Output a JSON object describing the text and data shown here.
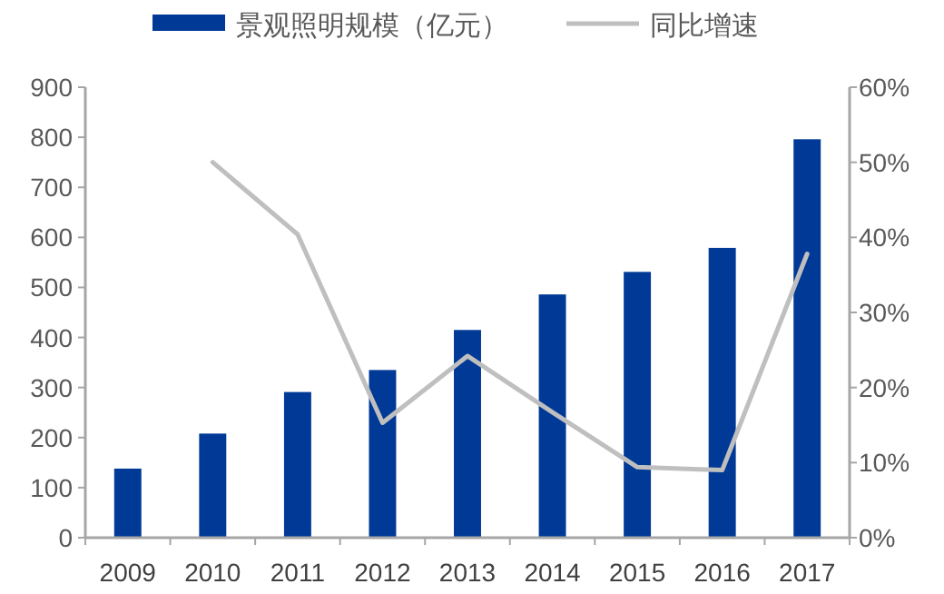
{
  "chart_data": {
    "type": "bar",
    "categories": [
      "2009",
      "2010",
      "2011",
      "2012",
      "2013",
      "2014",
      "2015",
      "2016",
      "2017"
    ],
    "series": [
      {
        "name": "景观照明规模（亿元）",
        "color": "#003a96",
        "values": [
          138,
          208,
          291,
          335,
          415,
          486,
          531,
          579,
          796
        ]
      },
      {
        "name": "同比增速",
        "type": "line",
        "axis": "y2",
        "color": "#bfbfbf",
        "values": [
          null,
          50,
          40.4,
          15.3,
          24.2,
          16.7,
          9.4,
          9.0,
          37.8
        ]
      }
    ],
    "ylim": [
      0,
      900
    ],
    "yticks": [
      0,
      100,
      200,
      300,
      400,
      500,
      600,
      700,
      800,
      900
    ],
    "y2lim": [
      0,
      60
    ],
    "y2ticks": [
      {
        "value": 0,
        "label": "0%"
      },
      {
        "value": 10,
        "label": "10%"
      },
      {
        "value": 20,
        "label": "20%"
      },
      {
        "value": 30,
        "label": "30%"
      },
      {
        "value": 40,
        "label": "40%"
      },
      {
        "value": 50,
        "label": "50%"
      },
      {
        "value": 60,
        "label": "60%"
      }
    ],
    "grid": false,
    "legend": "top",
    "marker": "none",
    "line_style": "solid"
  }
}
